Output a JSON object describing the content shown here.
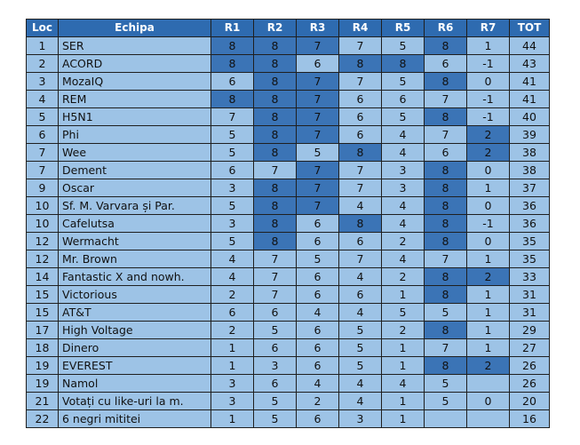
{
  "table": {
    "columns": [
      "Loc",
      "Echipa",
      "R1",
      "R2",
      "R3",
      "R4",
      "R5",
      "R6",
      "R7",
      "TOT"
    ],
    "rows": [
      {
        "loc": "1",
        "team": "SER",
        "r": [
          "8",
          "8",
          "7",
          "7",
          "5",
          "8",
          "1"
        ],
        "tot": "44",
        "hl": [
          1,
          1,
          1,
          0,
          0,
          1,
          0
        ]
      },
      {
        "loc": "2",
        "team": "ACORD",
        "r": [
          "8",
          "8",
          "6",
          "8",
          "8",
          "6",
          "-1"
        ],
        "tot": "43",
        "hl": [
          1,
          1,
          0,
          1,
          1,
          0,
          0
        ]
      },
      {
        "loc": "3",
        "team": "MozaIQ",
        "r": [
          "6",
          "8",
          "7",
          "7",
          "5",
          "8",
          "0"
        ],
        "tot": "41",
        "hl": [
          0,
          1,
          1,
          0,
          0,
          1,
          0
        ]
      },
      {
        "loc": "4",
        "team": "REM",
        "r": [
          "8",
          "8",
          "7",
          "6",
          "6",
          "7",
          "-1"
        ],
        "tot": "41",
        "hl": [
          1,
          1,
          1,
          0,
          0,
          0,
          0
        ]
      },
      {
        "loc": "5",
        "team": "H5N1",
        "r": [
          "7",
          "8",
          "7",
          "6",
          "5",
          "8",
          "-1"
        ],
        "tot": "40",
        "hl": [
          0,
          1,
          1,
          0,
          0,
          1,
          0
        ]
      },
      {
        "loc": "6",
        "team": "Phi",
        "r": [
          "5",
          "8",
          "7",
          "6",
          "4",
          "7",
          "2"
        ],
        "tot": "39",
        "hl": [
          0,
          1,
          1,
          0,
          0,
          0,
          1
        ]
      },
      {
        "loc": "7",
        "team": "Wee",
        "r": [
          "5",
          "8",
          "5",
          "8",
          "4",
          "6",
          "2"
        ],
        "tot": "38",
        "hl": [
          0,
          1,
          0,
          1,
          0,
          0,
          1
        ]
      },
      {
        "loc": "7",
        "team": "Dement",
        "r": [
          "6",
          "7",
          "7",
          "7",
          "3",
          "8",
          "0"
        ],
        "tot": "38",
        "hl": [
          0,
          0,
          1,
          0,
          0,
          1,
          0
        ]
      },
      {
        "loc": "9",
        "team": "Oscar",
        "r": [
          "3",
          "8",
          "7",
          "7",
          "3",
          "8",
          "1"
        ],
        "tot": "37",
        "hl": [
          0,
          1,
          1,
          0,
          0,
          1,
          0
        ]
      },
      {
        "loc": "10",
        "team": "Sf. M. Varvara și Par.",
        "r": [
          "5",
          "8",
          "7",
          "4",
          "4",
          "8",
          "0"
        ],
        "tot": "36",
        "hl": [
          0,
          1,
          1,
          0,
          0,
          1,
          0
        ]
      },
      {
        "loc": "10",
        "team": "Cafelutsa",
        "r": [
          "3",
          "8",
          "6",
          "8",
          "4",
          "8",
          "-1"
        ],
        "tot": "36",
        "hl": [
          0,
          1,
          0,
          1,
          0,
          1,
          0
        ]
      },
      {
        "loc": "12",
        "team": "Wermacht",
        "r": [
          "5",
          "8",
          "6",
          "6",
          "2",
          "8",
          "0"
        ],
        "tot": "35",
        "hl": [
          0,
          1,
          0,
          0,
          0,
          1,
          0
        ]
      },
      {
        "loc": "12",
        "team": "Mr. Brown",
        "r": [
          "4",
          "7",
          "5",
          "7",
          "4",
          "7",
          "1"
        ],
        "tot": "35",
        "hl": [
          0,
          0,
          0,
          0,
          0,
          0,
          0
        ]
      },
      {
        "loc": "14",
        "team": "Fantastic X and nowh.",
        "r": [
          "4",
          "7",
          "6",
          "4",
          "2",
          "8",
          "2"
        ],
        "tot": "33",
        "hl": [
          0,
          0,
          0,
          0,
          0,
          1,
          1
        ]
      },
      {
        "loc": "15",
        "team": "Victorious",
        "r": [
          "2",
          "7",
          "6",
          "6",
          "1",
          "8",
          "1"
        ],
        "tot": "31",
        "hl": [
          0,
          0,
          0,
          0,
          0,
          1,
          0
        ]
      },
      {
        "loc": "15",
        "team": "AT&T",
        "r": [
          "6",
          "6",
          "4",
          "4",
          "5",
          "5",
          "1"
        ],
        "tot": "31",
        "hl": [
          0,
          0,
          0,
          0,
          0,
          0,
          0
        ]
      },
      {
        "loc": "17",
        "team": "High Voltage",
        "r": [
          "2",
          "5",
          "6",
          "5",
          "2",
          "8",
          "1"
        ],
        "tot": "29",
        "hl": [
          0,
          0,
          0,
          0,
          0,
          1,
          0
        ]
      },
      {
        "loc": "18",
        "team": "Dinero",
        "r": [
          "1",
          "6",
          "6",
          "5",
          "1",
          "7",
          "1"
        ],
        "tot": "27",
        "hl": [
          0,
          0,
          0,
          0,
          0,
          0,
          0
        ]
      },
      {
        "loc": "19",
        "team": "EVEREST",
        "r": [
          "1",
          "3",
          "6",
          "5",
          "1",
          "8",
          "2"
        ],
        "tot": "26",
        "hl": [
          0,
          0,
          0,
          0,
          0,
          1,
          1
        ]
      },
      {
        "loc": "19",
        "team": "Namol",
        "r": [
          "3",
          "6",
          "4",
          "4",
          "4",
          "5",
          ""
        ],
        "tot": "26",
        "hl": [
          0,
          0,
          0,
          0,
          0,
          0,
          0
        ]
      },
      {
        "loc": "21",
        "team": "Votați cu like-uri la m.",
        "r": [
          "3",
          "5",
          "2",
          "4",
          "1",
          "5",
          "0"
        ],
        "tot": "20",
        "hl": [
          0,
          0,
          0,
          0,
          0,
          0,
          0
        ]
      },
      {
        "loc": "22",
        "team": "6 negri mititei",
        "r": [
          "1",
          "5",
          "6",
          "3",
          "1",
          "",
          ""
        ],
        "tot": "16",
        "hl": [
          0,
          0,
          0,
          0,
          0,
          0,
          0
        ]
      }
    ]
  },
  "colors": {
    "header_bg": "#2e6bb0",
    "cell_bg": "#9dc3e6",
    "highlight_bg": "#3b74b6",
    "border": "#1f1f1f"
  }
}
